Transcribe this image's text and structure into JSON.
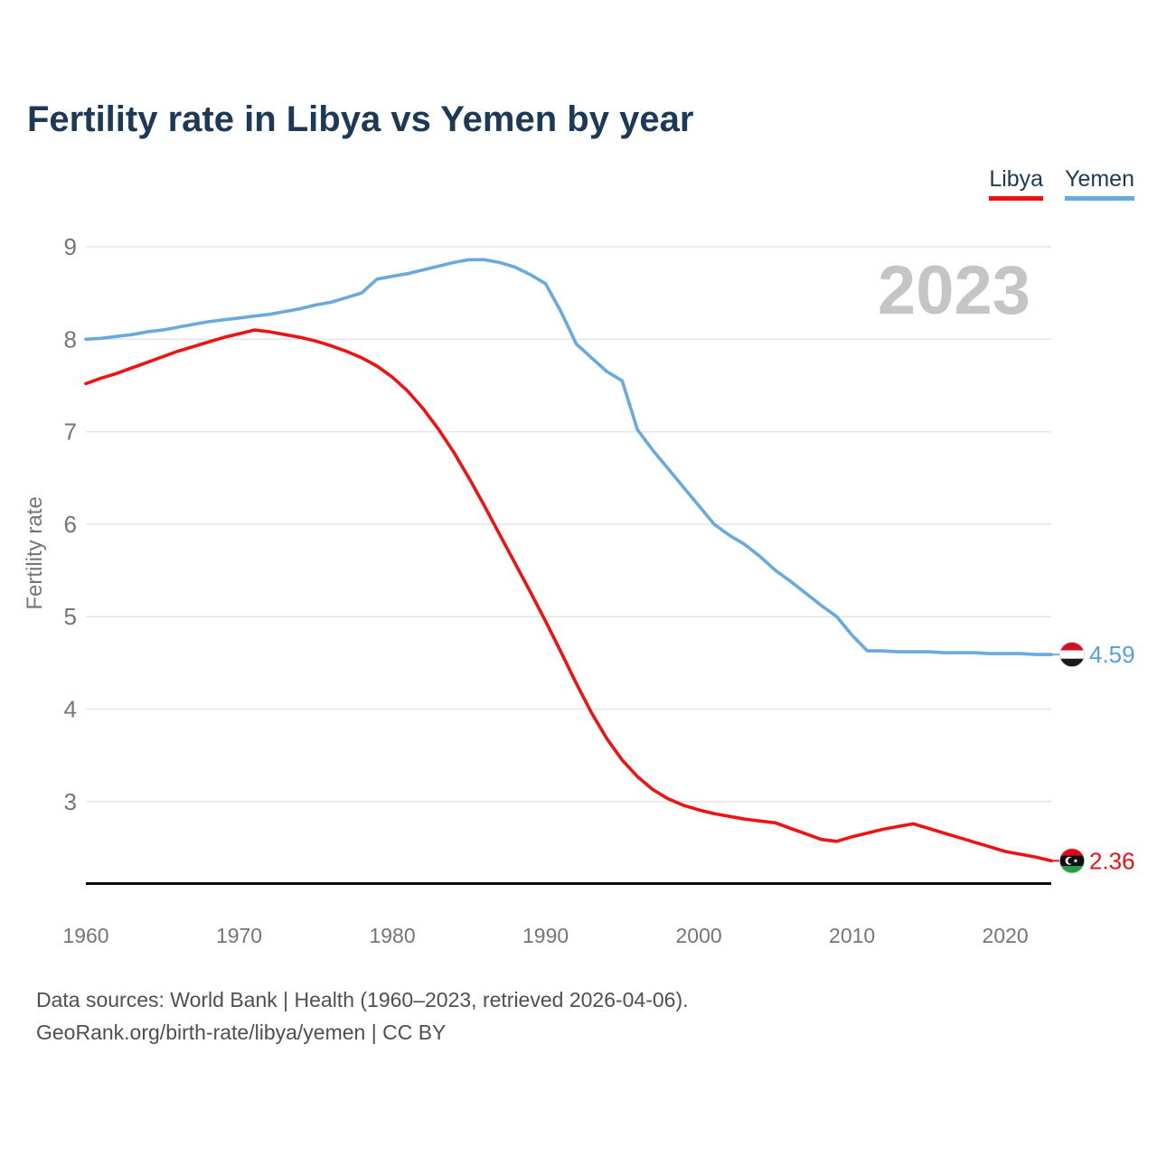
{
  "title": "Fertility rate in Libya vs Yemen by year",
  "watermark": "2023",
  "legend": {
    "items": [
      {
        "label": "Libya",
        "color": "#ee1312"
      },
      {
        "label": "Yemen",
        "color": "#68aade"
      }
    ]
  },
  "footer": {
    "line1": "Data sources: World Bank | Health (1960–2023, retrieved 2026-04-06).",
    "line2": "GeoRank.org/birth-rate/libya/yemen | CC BY"
  },
  "end_labels": [
    {
      "series": "Yemen",
      "value": "4.59",
      "flag": "yemen-flag",
      "text_color": "#5b9fd9"
    },
    {
      "series": "Libya",
      "value": "2.36",
      "flag": "libya-flag",
      "text_color": "#ee1312"
    }
  ],
  "chart_data": {
    "type": "line",
    "title": "Fertility rate in Libya vs Yemen by year",
    "xlabel": "",
    "ylabel": "Fertility rate",
    "ylim": [
      2.2,
      9.2
    ],
    "yticks": [
      3,
      4,
      5,
      6,
      7,
      8,
      9
    ],
    "xticks": [
      1960,
      1970,
      1980,
      1990,
      2000,
      2010,
      2020
    ],
    "grid": "horizontal",
    "legend_position": "top-right",
    "years": [
      1960,
      1961,
      1962,
      1963,
      1964,
      1965,
      1966,
      1967,
      1968,
      1969,
      1970,
      1971,
      1972,
      1973,
      1974,
      1975,
      1976,
      1977,
      1978,
      1979,
      1980,
      1981,
      1982,
      1983,
      1984,
      1985,
      1986,
      1987,
      1988,
      1989,
      1990,
      1991,
      1992,
      1993,
      1994,
      1995,
      1996,
      1997,
      1998,
      1999,
      2000,
      2001,
      2002,
      2003,
      2004,
      2005,
      2006,
      2007,
      2008,
      2009,
      2010,
      2011,
      2012,
      2013,
      2014,
      2015,
      2016,
      2017,
      2018,
      2019,
      2020,
      2021,
      2022,
      2023
    ],
    "series": [
      {
        "name": "Yemen",
        "color": "#68aade",
        "values": [
          8.0,
          8.01,
          8.03,
          8.05,
          8.08,
          8.1,
          8.13,
          8.16,
          8.19,
          8.21,
          8.23,
          8.25,
          8.27,
          8.3,
          8.33,
          8.37,
          8.4,
          8.45,
          8.5,
          8.65,
          8.68,
          8.71,
          8.75,
          8.79,
          8.83,
          8.86,
          8.86,
          8.83,
          8.78,
          8.7,
          8.6,
          8.3,
          7.95,
          7.8,
          7.65,
          7.55,
          7.02,
          6.8,
          6.6,
          6.4,
          6.2,
          6.0,
          5.88,
          5.78,
          5.65,
          5.5,
          5.38,
          5.25,
          5.12,
          5.0,
          4.8,
          4.63,
          4.63,
          4.62,
          4.62,
          4.62,
          4.61,
          4.61,
          4.61,
          4.6,
          4.6,
          4.6,
          4.59,
          4.59
        ]
      },
      {
        "name": "Libya",
        "color": "#ee1312",
        "values": [
          7.52,
          7.58,
          7.63,
          7.69,
          7.75,
          7.81,
          7.87,
          7.92,
          7.97,
          8.02,
          8.06,
          8.1,
          8.08,
          8.05,
          8.02,
          7.98,
          7.93,
          7.87,
          7.8,
          7.71,
          7.59,
          7.44,
          7.25,
          7.03,
          6.78,
          6.5,
          6.2,
          5.89,
          5.58,
          5.27,
          4.95,
          4.62,
          4.28,
          3.96,
          3.68,
          3.45,
          3.27,
          3.13,
          3.03,
          2.96,
          2.91,
          2.87,
          2.84,
          2.81,
          2.79,
          2.77,
          2.71,
          2.65,
          2.59,
          2.57,
          2.62,
          2.66,
          2.7,
          2.73,
          2.76,
          2.71,
          2.66,
          2.61,
          2.56,
          2.51,
          2.46,
          2.43,
          2.4,
          2.36
        ]
      }
    ]
  }
}
